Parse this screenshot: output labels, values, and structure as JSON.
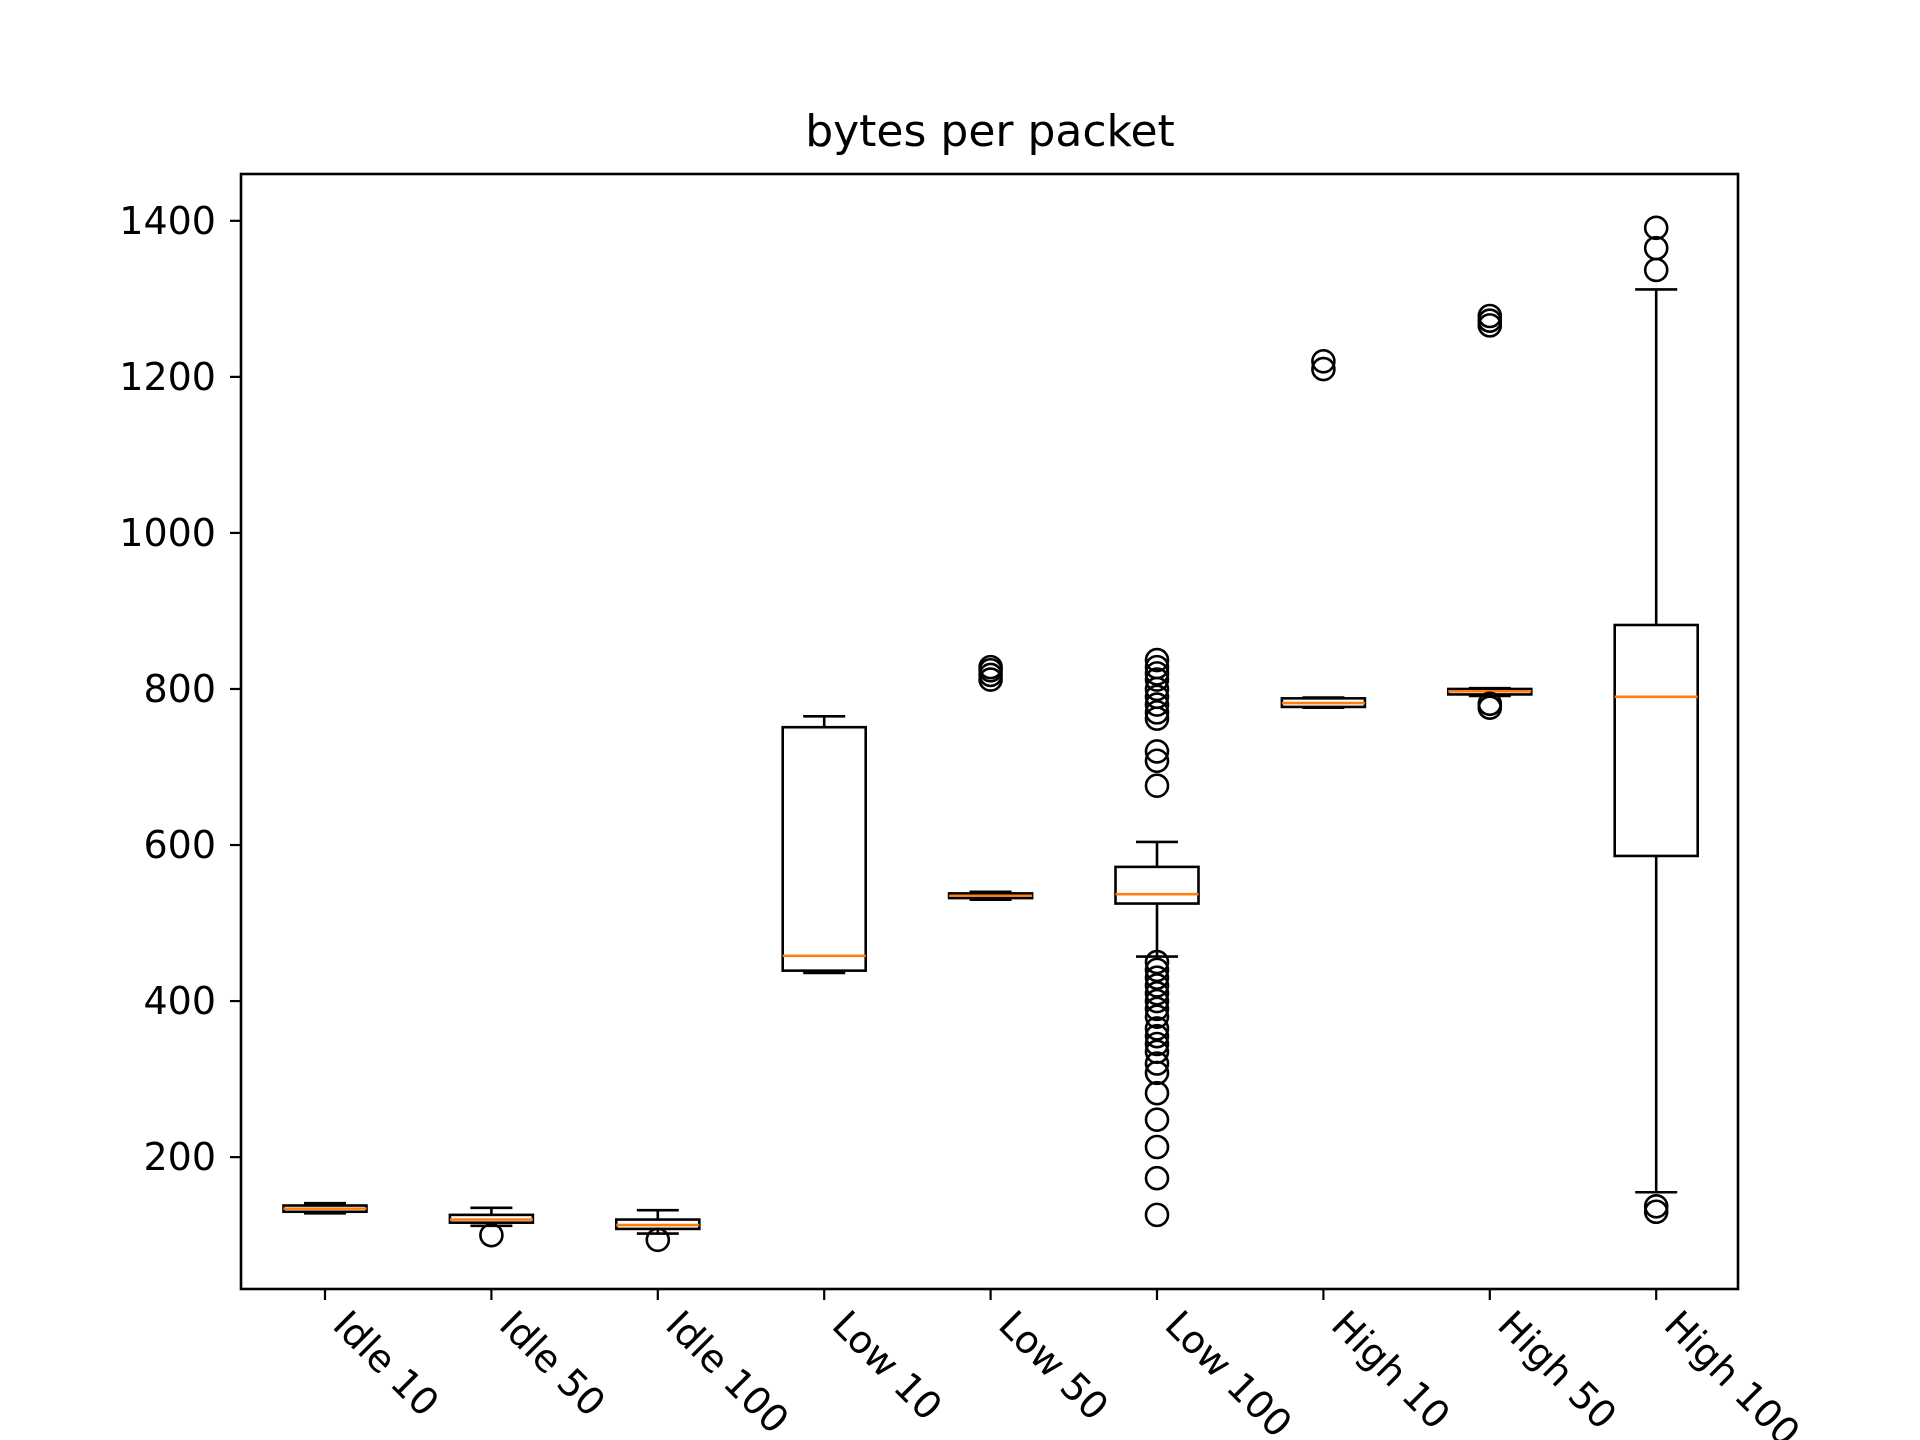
{
  "chart_data": {
    "type": "box",
    "title": "bytes per packet",
    "xlabel": "",
    "ylabel": "",
    "categories": [
      "Idle 10",
      "Idle 50",
      "Idle 100",
      "Low 10",
      "Low 50",
      "Low 100",
      "High 10",
      "High 50",
      "High 100"
    ],
    "yticks": [
      200,
      400,
      600,
      800,
      1000,
      1200,
      1400
    ],
    "ylim": [
      31,
      1460
    ],
    "grid": false,
    "boxes": [
      {
        "category": "Idle 10",
        "whisker_low": 128,
        "q1": 130,
        "median": 134,
        "q3": 138,
        "whisker_high": 141,
        "outliers": []
      },
      {
        "category": "Idle 50",
        "whisker_low": 112,
        "q1": 116,
        "median": 120,
        "q3": 126,
        "whisker_high": 135,
        "outliers": [
          100
        ]
      },
      {
        "category": "Idle 100",
        "whisker_low": 102,
        "q1": 108,
        "median": 113,
        "q3": 120,
        "whisker_high": 132,
        "outliers": [
          94
        ]
      },
      {
        "category": "Low 10",
        "whisker_low": 436,
        "q1": 439,
        "median": 458,
        "q3": 751,
        "whisker_high": 765,
        "outliers": []
      },
      {
        "category": "Low 50",
        "whisker_low": 530,
        "q1": 532,
        "median": 535,
        "q3": 538,
        "whisker_high": 540,
        "outliers": [
          812,
          818,
          824,
          828
        ]
      },
      {
        "category": "Low 100",
        "whisker_low": 457,
        "q1": 525,
        "median": 537,
        "q3": 572,
        "whisker_high": 604,
        "outliers": [
          837,
          828,
          820,
          812,
          800,
          790,
          780,
          770,
          762,
          720,
          708,
          676,
          450,
          440,
          430,
          420,
          410,
          400,
          390,
          380,
          365,
          355,
          345,
          335,
          320,
          308,
          282,
          248,
          213,
          173,
          126
        ]
      },
      {
        "category": "High 10",
        "whisker_low": 776,
        "q1": 777,
        "median": 782,
        "q3": 788,
        "whisker_high": 789,
        "outliers": [
          1210,
          1220
        ]
      },
      {
        "category": "High 50",
        "whisker_low": 791,
        "q1": 793,
        "median": 797,
        "q3": 800,
        "whisker_high": 801,
        "outliers": [
          776,
          781,
          1266,
          1272,
          1278
        ]
      },
      {
        "category": "High 100",
        "whisker_low": 155,
        "q1": 586,
        "median": 790,
        "q3": 882,
        "whisker_high": 1312,
        "outliers": [
          130,
          137,
          1337,
          1365,
          1391
        ]
      }
    ]
  }
}
